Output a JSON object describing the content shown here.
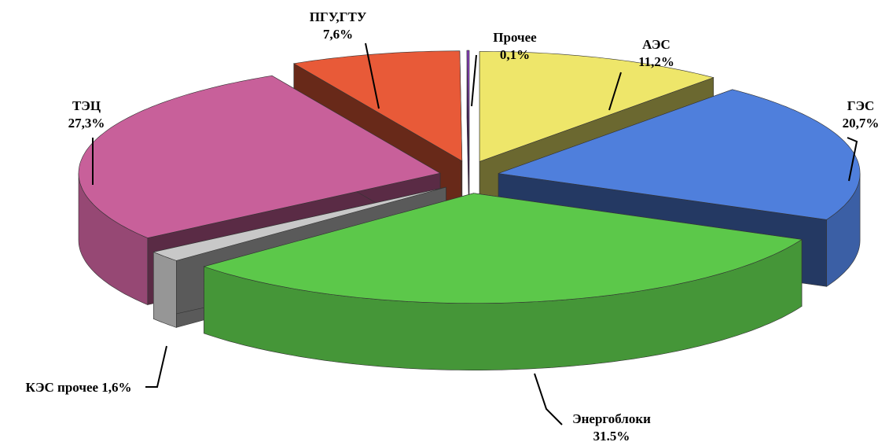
{
  "chart_data": {
    "type": "pie3d",
    "categories": [
      "АЭС",
      "ГЭС",
      "Энергоблоки",
      "КЭС прочее",
      "ТЭЦ",
      "ПГУ,ГТУ",
      "Прочее"
    ],
    "values": [
      11.2,
      20.7,
      31.5,
      1.6,
      27.3,
      7.6,
      0.1
    ],
    "value_labels": [
      "11,2%",
      "20,7%",
      "31.5%",
      "1,6%",
      "27,3%",
      "7,6%",
      "0,1%"
    ],
    "colors": [
      "#eee66a",
      "#4f7fdc",
      "#5cc84a",
      "#c8c8c8",
      "#c8609a",
      "#e85a38",
      "#8a3cc0"
    ]
  }
}
